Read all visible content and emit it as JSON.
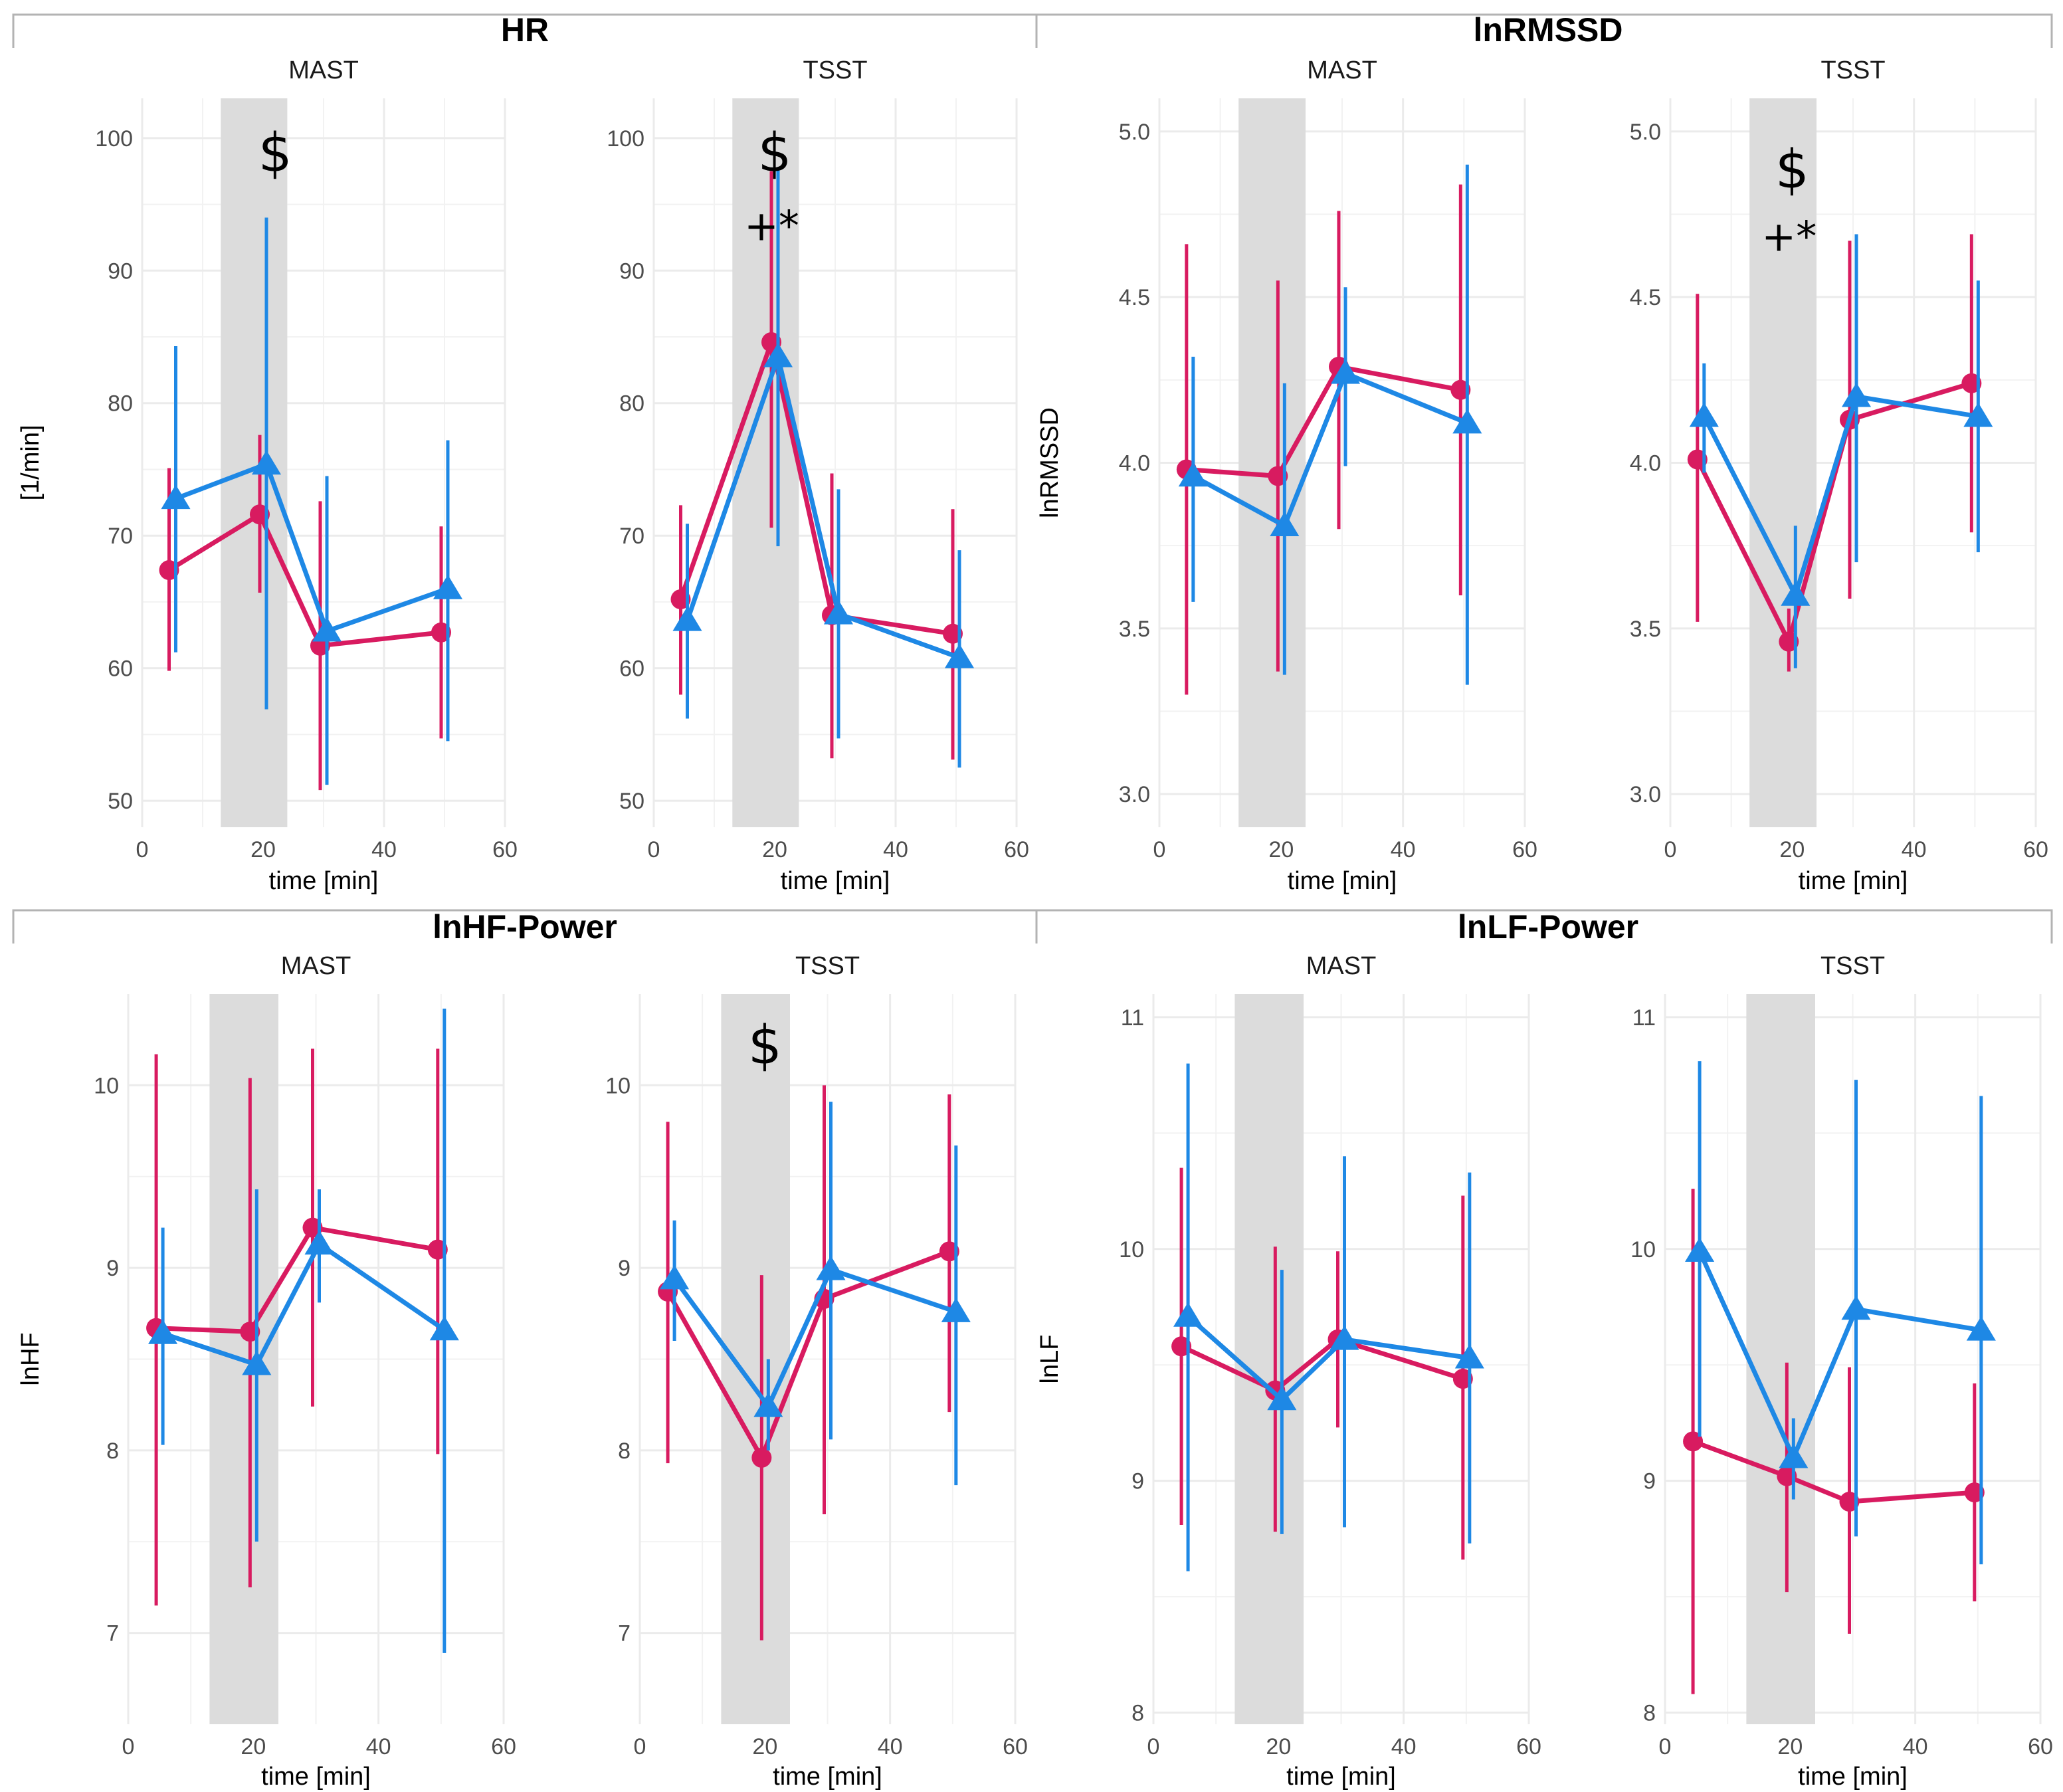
{
  "colors": {
    "series_a": "#d81b60",
    "series_b": "#1e88e5",
    "shade": "#dcdcdc",
    "grid": "#ebebeb"
  },
  "chart_data": [
    {
      "type": "line",
      "group_title": "HR",
      "ylabel": "[1/min]",
      "xlabel": "time [min]",
      "xlim": [
        0,
        60
      ],
      "x_ticks": [
        0,
        20,
        40,
        60
      ],
      "ylim": [
        48,
        103
      ],
      "y_ticks": [
        50,
        60,
        70,
        80,
        90,
        100
      ],
      "y_tick_labels": [
        "50",
        "60",
        "70",
        "80",
        "90",
        "100"
      ],
      "shaded_interval": [
        13,
        24
      ],
      "panels": [
        {
          "title": "MAST",
          "series": [
            {
              "name": "series_a",
              "marker": "circle",
              "x": [
                5,
                20,
                30,
                50
              ],
              "y": [
                67.4,
                71.6,
                61.7,
                62.7
              ],
              "lower": [
                59.8,
                65.7,
                50.8,
                54.7
              ],
              "upper": [
                75.1,
                77.6,
                72.6,
                70.7
              ]
            },
            {
              "name": "series_b",
              "marker": "triangle",
              "x": [
                5,
                20,
                30,
                50
              ],
              "y": [
                72.8,
                75.4,
                62.8,
                66.0
              ],
              "lower": [
                61.2,
                56.9,
                51.2,
                54.5
              ],
              "upper": [
                84.3,
                94.0,
                74.5,
                77.2
              ]
            }
          ],
          "annotations": [
            {
              "text": "$",
              "x": 22,
              "y": 97.5,
              "size": 80
            }
          ]
        },
        {
          "title": "TSST",
          "series": [
            {
              "name": "series_a",
              "marker": "circle",
              "x": [
                5,
                20,
                30,
                50
              ],
              "y": [
                65.2,
                84.6,
                64.0,
                62.6
              ],
              "lower": [
                58.0,
                70.6,
                53.2,
                53.1
              ],
              "upper": [
                72.3,
                97.5,
                74.7,
                72.0
              ]
            },
            {
              "name": "series_b",
              "marker": "triangle",
              "x": [
                5,
                20,
                30,
                50
              ],
              "y": [
                63.6,
                83.5,
                64.1,
                60.8
              ],
              "lower": [
                56.2,
                69.2,
                54.7,
                52.5
              ],
              "upper": [
                70.9,
                97.8,
                73.5,
                68.9
              ]
            }
          ],
          "annotations": [
            {
              "text": "$",
              "x": 20,
              "y": 97.5,
              "size": 80
            },
            {
              "text": "+*",
              "x": 19.5,
              "y": 92.3,
              "size": 62
            }
          ]
        }
      ]
    },
    {
      "type": "line",
      "group_title": "lnRMSSD",
      "ylabel": "lnRMSSD",
      "xlabel": "time [min]",
      "xlim": [
        0,
        60
      ],
      "x_ticks": [
        0,
        20,
        40,
        60
      ],
      "ylim": [
        2.9,
        5.1
      ],
      "y_ticks": [
        3.0,
        3.5,
        4.0,
        4.5,
        5.0
      ],
      "y_tick_labels": [
        "3.0",
        "3.5",
        "4.0",
        "4.5",
        "5.0"
      ],
      "shaded_interval": [
        13,
        24
      ],
      "panels": [
        {
          "title": "MAST",
          "series": [
            {
              "name": "series_a",
              "marker": "circle",
              "x": [
                5,
                20,
                30,
                50
              ],
              "y": [
                3.98,
                3.96,
                4.29,
                4.22
              ],
              "lower": [
                3.3,
                3.37,
                3.8,
                3.6
              ],
              "upper": [
                4.66,
                4.55,
                4.76,
                4.84
              ]
            },
            {
              "name": "series_b",
              "marker": "triangle",
              "x": [
                5,
                20,
                30,
                50
              ],
              "y": [
                3.96,
                3.81,
                4.27,
                4.12
              ],
              "lower": [
                3.58,
                3.36,
                3.99,
                3.33
              ],
              "upper": [
                4.32,
                4.24,
                4.53,
                4.9
              ]
            }
          ],
          "annotations": []
        },
        {
          "title": "TSST",
          "series": [
            {
              "name": "series_a",
              "marker": "circle",
              "x": [
                5,
                20,
                30,
                50
              ],
              "y": [
                4.01,
                3.46,
                4.13,
                4.24
              ],
              "lower": [
                3.52,
                3.37,
                3.59,
                3.79
              ],
              "upper": [
                4.51,
                3.56,
                4.67,
                4.69
              ]
            },
            {
              "name": "series_b",
              "marker": "triangle",
              "x": [
                5,
                20,
                30,
                50
              ],
              "y": [
                4.14,
                3.6,
                4.2,
                4.14
              ],
              "lower": [
                3.97,
                3.38,
                3.7,
                3.73
              ],
              "upper": [
                4.3,
                3.81,
                4.69,
                4.55
              ]
            }
          ],
          "annotations": [
            {
              "text": "$",
              "x": 20,
              "y": 4.83,
              "size": 80
            },
            {
              "text": "+*",
              "x": 19.5,
              "y": 4.64,
              "size": 62
            }
          ]
        }
      ]
    },
    {
      "type": "line",
      "group_title": "lnHF-Power",
      "ylabel": "lnHF",
      "xlabel": "time [min]",
      "xlim": [
        0,
        60
      ],
      "x_ticks": [
        0,
        20,
        40,
        60
      ],
      "ylim": [
        6.5,
        10.5
      ],
      "y_ticks": [
        7,
        8,
        9,
        10
      ],
      "y_tick_labels": [
        "7",
        "8",
        "9",
        "10"
      ],
      "shaded_interval": [
        13,
        24
      ],
      "panels": [
        {
          "title": "MAST",
          "series": [
            {
              "name": "series_a",
              "marker": "circle",
              "x": [
                5,
                20,
                30,
                50
              ],
              "y": [
                8.67,
                8.65,
                9.22,
                9.1
              ],
              "lower": [
                7.15,
                7.25,
                8.24,
                7.98
              ],
              "upper": [
                10.17,
                10.04,
                10.2,
                10.2
              ]
            },
            {
              "name": "series_b",
              "marker": "triangle",
              "x": [
                5,
                20,
                30,
                50
              ],
              "y": [
                8.64,
                8.47,
                9.13,
                8.66
              ],
              "lower": [
                8.03,
                7.5,
                8.81,
                6.89
              ],
              "upper": [
                9.22,
                9.43,
                9.43,
                10.42
              ]
            }
          ],
          "annotations": []
        },
        {
          "title": "TSST",
          "series": [
            {
              "name": "series_a",
              "marker": "circle",
              "x": [
                5,
                20,
                30,
                50
              ],
              "y": [
                8.87,
                7.96,
                8.83,
                9.09
              ],
              "lower": [
                7.93,
                6.96,
                7.65,
                8.21
              ],
              "upper": [
                9.8,
                8.96,
                10.0,
                9.95
              ]
            },
            {
              "name": "series_b",
              "marker": "triangle",
              "x": [
                5,
                20,
                30,
                50
              ],
              "y": [
                8.94,
                8.24,
                8.99,
                8.76
              ],
              "lower": [
                8.6,
                8.0,
                8.06,
                7.81
              ],
              "upper": [
                9.26,
                8.5,
                9.91,
                9.67
              ]
            }
          ],
          "annotations": [
            {
              "text": "$",
              "x": 20,
              "y": 10.12,
              "size": 80
            }
          ]
        }
      ]
    },
    {
      "type": "line",
      "group_title": "lnLF-Power",
      "ylabel": "lnLF",
      "xlabel": "time [min]",
      "xlim": [
        0,
        60
      ],
      "x_ticks": [
        0,
        20,
        40,
        60
      ],
      "ylim": [
        7.95,
        11.1
      ],
      "y_ticks": [
        8,
        9,
        10,
        11
      ],
      "y_tick_labels": [
        "8",
        "9",
        "10",
        "11"
      ],
      "shaded_interval": [
        13,
        24
      ],
      "panels": [
        {
          "title": "MAST",
          "series": [
            {
              "name": "series_a",
              "marker": "circle",
              "x": [
                5,
                20,
                30,
                50
              ],
              "y": [
                9.58,
                9.39,
                9.61,
                9.44
              ],
              "lower": [
                8.81,
                8.78,
                9.23,
                8.66
              ],
              "upper": [
                10.35,
                10.01,
                9.99,
                10.23
              ]
            },
            {
              "name": "series_b",
              "marker": "triangle",
              "x": [
                5,
                20,
                30,
                50
              ],
              "y": [
                9.71,
                9.35,
                9.61,
                9.53
              ],
              "lower": [
                8.61,
                8.77,
                8.8,
                8.73
              ],
              "upper": [
                10.8,
                9.91,
                10.4,
                10.33
              ]
            }
          ],
          "annotations": []
        },
        {
          "title": "TSST",
          "series": [
            {
              "name": "series_a",
              "marker": "circle",
              "x": [
                5,
                20,
                30,
                50
              ],
              "y": [
                9.17,
                9.02,
                8.91,
                8.95
              ],
              "lower": [
                8.08,
                8.52,
                8.34,
                8.48
              ],
              "upper": [
                10.26,
                9.51,
                9.49,
                9.42
              ]
            },
            {
              "name": "series_b",
              "marker": "triangle",
              "x": [
                5,
                20,
                30,
                50
              ],
              "y": [
                9.99,
                9.1,
                9.74,
                9.65
              ],
              "lower": [
                9.19,
                8.92,
                8.76,
                8.64
              ],
              "upper": [
                10.81,
                9.27,
                10.73,
                10.66
              ]
            }
          ],
          "annotations": []
        }
      ]
    }
  ]
}
